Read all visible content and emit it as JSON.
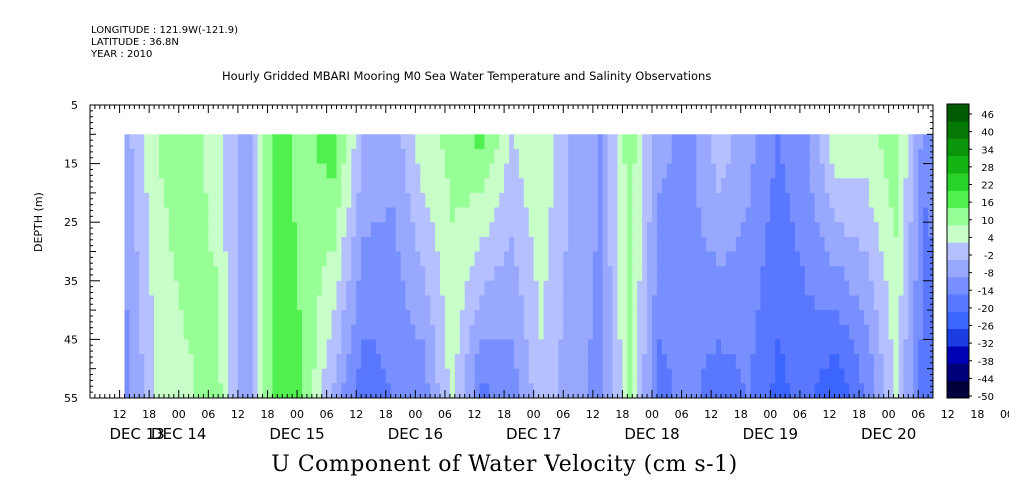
{
  "header": {
    "longitude": "LONGITUDE : 121.9W(-121.9)",
    "latitude": "LATITUDE : 36.8N",
    "year": "YEAR : 2010"
  },
  "chart_data": {
    "type": "heatmap",
    "title": "Hourly Gridded MBARI Mooring M0 Sea Water Temperature and Salinity Observations",
    "xlabel": "U Component of Water Velocity (cm s-1)",
    "ylabel": "DEPTH (m)",
    "y_ticks": [
      5,
      15,
      25,
      35,
      45,
      55
    ],
    "ylim": [
      5,
      55
    ],
    "y_data_range": [
      10,
      55
    ],
    "x_hour_ticks": [
      "12",
      "18",
      "00",
      "06",
      "12",
      "18",
      "00",
      "06",
      "12",
      "18",
      "00",
      "06",
      "12",
      "18",
      "00",
      "06",
      "12",
      "18",
      "00",
      "06",
      "12",
      "18",
      "00",
      "06",
      "12",
      "18",
      "00",
      "06",
      "12",
      "18",
      "00",
      "06"
    ],
    "x_day_labels": [
      "DEC 13",
      "DEC 14",
      "DEC 15",
      "DEC 16",
      "DEC 17",
      "DEC 18",
      "DEC 19",
      "DEC 20"
    ],
    "x_range": [
      "2010-12-13 06:00",
      "2010-12-20 09:00"
    ],
    "x_data_start": "2010-12-13 13:00",
    "colorbar": {
      "labels": [
        "46",
        "40",
        "34",
        "28",
        "22",
        "16",
        "10",
        "4",
        "-2",
        "-8",
        "-14",
        "-20",
        "-26",
        "-32",
        "-38",
        "-44",
        "-50"
      ],
      "min": -50,
      "max": 52,
      "step": 6,
      "colors": [
        "#00003c",
        "#00007a",
        "#0000b4",
        "#1a3ce0",
        "#3c64ff",
        "#5a78ff",
        "#7890ff",
        "#98a8ff",
        "#b4c0ff",
        "#c8ffc8",
        "#96ff96",
        "#50f050",
        "#28d228",
        "#14b414",
        "#0a960a",
        "#057805",
        "#005a00"
      ]
    },
    "data_profile_by_hour": [
      {
        "hour": 0,
        "u_surface": -4,
        "u_bottom": -10
      },
      {
        "hour": 6,
        "u_surface": 10,
        "u_bottom": 4
      },
      {
        "hour": 12,
        "u_surface": 16,
        "u_bottom": 8
      },
      {
        "hour": 18,
        "u_surface": 6,
        "u_bottom": 14
      },
      {
        "hour": 24,
        "u_surface": -6,
        "u_bottom": -8
      },
      {
        "hour": 30,
        "u_surface": 18,
        "u_bottom": 20
      },
      {
        "hour": 36,
        "u_surface": 14,
        "u_bottom": 16
      },
      {
        "hour": 42,
        "u_surface": 20,
        "u_bottom": -4
      },
      {
        "hour": 48,
        "u_surface": -2,
        "u_bottom": -18
      },
      {
        "hour": 54,
        "u_surface": -6,
        "u_bottom": -14
      },
      {
        "hour": 60,
        "u_surface": 8,
        "u_bottom": -12
      },
      {
        "hour": 66,
        "u_surface": 12,
        "u_bottom": 6
      },
      {
        "hour": 72,
        "u_surface": 18,
        "u_bottom": -16
      },
      {
        "hour": 78,
        "u_surface": 4,
        "u_bottom": -12
      },
      {
        "hour": 84,
        "u_surface": 10,
        "u_bottom": 2
      },
      {
        "hour": 90,
        "u_surface": -2,
        "u_bottom": -6
      },
      {
        "hour": 96,
        "u_surface": -8,
        "u_bottom": -10
      },
      {
        "hour": 102,
        "u_surface": 14,
        "u_bottom": 10
      },
      {
        "hour": 108,
        "u_surface": -6,
        "u_bottom": -16
      },
      {
        "hour": 114,
        "u_surface": -10,
        "u_bottom": -12
      },
      {
        "hour": 120,
        "u_surface": 2,
        "u_bottom": -18
      },
      {
        "hour": 126,
        "u_surface": -6,
        "u_bottom": -14
      },
      {
        "hour": 132,
        "u_surface": -14,
        "u_bottom": -22
      },
      {
        "hour": 138,
        "u_surface": -8,
        "u_bottom": -18
      },
      {
        "hour": 144,
        "u_surface": 10,
        "u_bottom": -26
      },
      {
        "hour": 150,
        "u_surface": 8,
        "u_bottom": -14
      },
      {
        "hour": 156,
        "u_surface": 14,
        "u_bottom": 4
      },
      {
        "hour": 162,
        "u_surface": -12,
        "u_bottom": -20
      },
      {
        "hour": 168,
        "u_surface": -4,
        "u_bottom": -14
      },
      {
        "hour": 174,
        "u_surface": 12,
        "u_bottom": -16
      }
    ]
  }
}
